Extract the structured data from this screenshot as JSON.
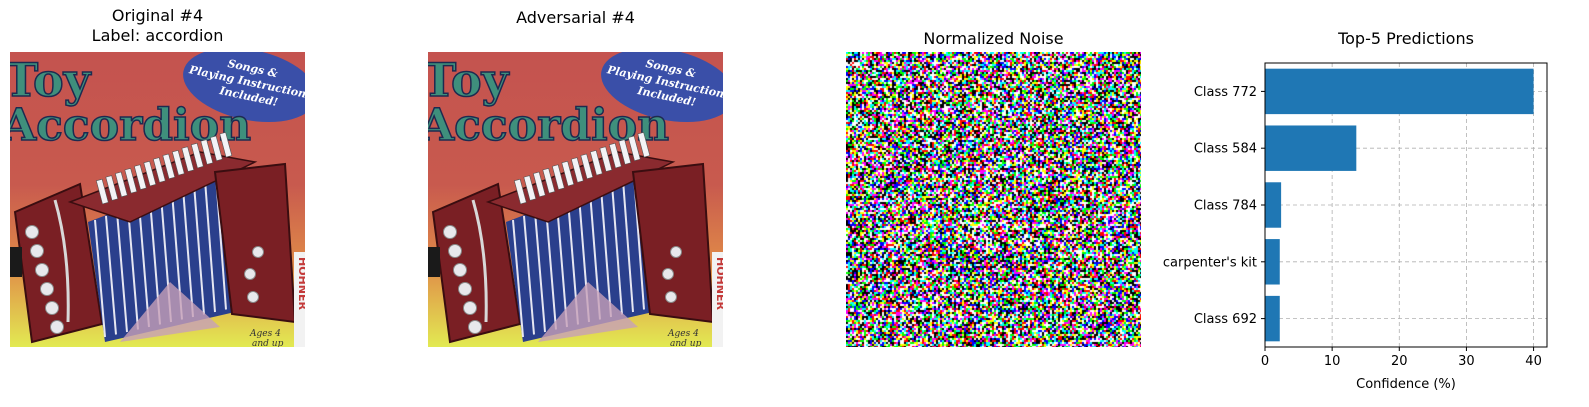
{
  "panels": {
    "original": {
      "title_line1": "Original #4",
      "title_line2": "Label: accordion"
    },
    "adversarial": {
      "title": "Adversarial #4"
    },
    "noise": {
      "title": "Normalized Noise"
    }
  },
  "image_text": {
    "title_word1": "Toy",
    "title_word2": "Accordion",
    "badge_line1": "Songs &",
    "badge_line2": "Playing Instructions",
    "badge_line3": "Included!",
    "brand": "HOHNER",
    "age_line1": "Ages 4",
    "age_line2": "and up"
  },
  "colors": {
    "bar": "#1f77b4",
    "grid": "#b0b0b0",
    "cover_red": "#c4534f",
    "cover_yellow": "#e2ea52",
    "accordion_body": "#7a1f24",
    "bellows_blue": "#2a3f8c"
  },
  "chart_data": {
    "type": "bar",
    "orientation": "horizontal",
    "title": "Top-5 Predictions",
    "xlabel": "Confidence (%)",
    "ylabel": "",
    "categories": [
      "Class 772",
      "Class 584",
      "Class 784",
      "carpenter's kit",
      "Class 692"
    ],
    "values": [
      40.0,
      13.6,
      2.4,
      2.2,
      2.2
    ],
    "xlim": [
      0,
      42
    ],
    "xticks": [
      "0",
      "10",
      "20",
      "30",
      "40"
    ],
    "grid": true
  }
}
